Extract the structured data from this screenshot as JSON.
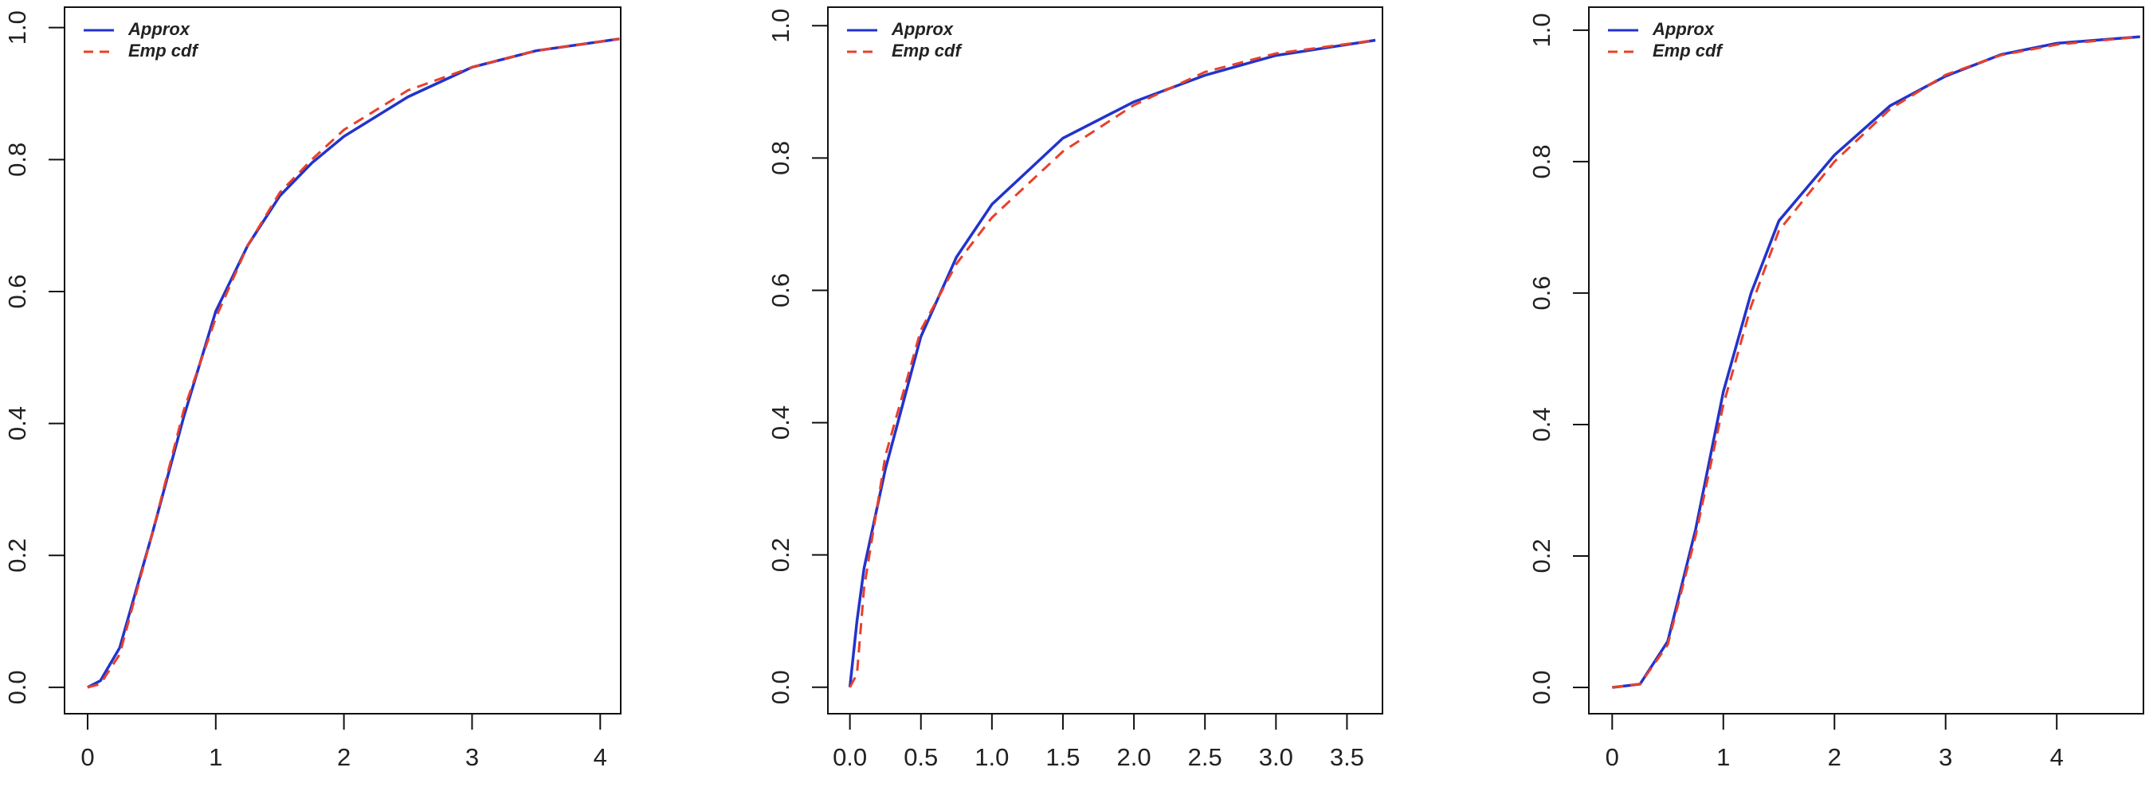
{
  "chart_data": [
    {
      "type": "line",
      "x": [
        0,
        0.1,
        0.25,
        0.5,
        0.75,
        1,
        1.25,
        1.5,
        1.75,
        2,
        2.5,
        3,
        3.5,
        4.15
      ],
      "series": [
        {
          "name": "Approx",
          "color": "#2233cc",
          "values": [
            0,
            0.01,
            0.06,
            0.23,
            0.41,
            0.57,
            0.67,
            0.745,
            0.795,
            0.835,
            0.895,
            0.94,
            0.965,
            0.983
          ]
        },
        {
          "name": "Emp cdf",
          "color": "#e8402a",
          "values": [
            0,
            0.005,
            0.05,
            0.23,
            0.42,
            0.56,
            0.67,
            0.75,
            0.8,
            0.845,
            0.905,
            0.94,
            0.965,
            0.983
          ]
        }
      ],
      "xlim": [
        -0.18,
        4.16
      ],
      "ylim": [
        -0.04,
        1.031
      ],
      "xticks": [
        0,
        1,
        2,
        3,
        4
      ],
      "yticks": [
        {
          "value": 0,
          "label": "0.0"
        },
        {
          "value": 0.2,
          "label": "0.2"
        },
        {
          "value": 0.4,
          "label": "0.4"
        },
        {
          "value": 0.6,
          "label": "0.6"
        },
        {
          "value": 0.8,
          "label": "0.8"
        },
        {
          "value": 1,
          "label": "1.0"
        }
      ],
      "legend": "top-left"
    },
    {
      "type": "line",
      "x": [
        0,
        0.05,
        0.1,
        0.25,
        0.5,
        0.75,
        1,
        1.5,
        2,
        2.5,
        3,
        3.7
      ],
      "series": [
        {
          "name": "Approx",
          "color": "#2233cc",
          "values": [
            0,
            0.1,
            0.18,
            0.33,
            0.53,
            0.65,
            0.73,
            0.83,
            0.885,
            0.925,
            0.955,
            0.978
          ]
        },
        {
          "name": "Emp cdf",
          "color": "#e8402a",
          "values": [
            0,
            0.02,
            0.15,
            0.35,
            0.54,
            0.64,
            0.71,
            0.81,
            0.88,
            0.93,
            0.958,
            0.978
          ]
        }
      ],
      "xlim": [
        -0.155,
        3.75
      ],
      "ylim": [
        -0.04,
        1.028
      ],
      "xticks": [
        {
          "value": 0,
          "label": "0.0"
        },
        0.5,
        {
          "value": 1,
          "label": "1.0"
        },
        1.5,
        {
          "value": 2,
          "label": "2.0"
        },
        2.5,
        {
          "value": 3,
          "label": "3.0"
        },
        3.5
      ],
      "yticks": [
        {
          "value": 0,
          "label": "0.0"
        },
        {
          "value": 0.2,
          "label": "0.2"
        },
        {
          "value": 0.4,
          "label": "0.4"
        },
        {
          "value": 0.6,
          "label": "0.6"
        },
        {
          "value": 0.8,
          "label": "0.8"
        },
        {
          "value": 1,
          "label": "1.0"
        }
      ],
      "legend": "top-left"
    },
    {
      "type": "line",
      "x": [
        0,
        0.25,
        0.5,
        0.75,
        1,
        1.25,
        1.5,
        2,
        2.5,
        3,
        3.5,
        4,
        4.75
      ],
      "series": [
        {
          "name": "Approx",
          "color": "#2233cc",
          "values": [
            0,
            0.005,
            0.07,
            0.24,
            0.45,
            0.6,
            0.71,
            0.81,
            0.885,
            0.93,
            0.963,
            0.98,
            0.99
          ]
        },
        {
          "name": "Emp cdf",
          "color": "#e8402a",
          "values": [
            0,
            0.005,
            0.065,
            0.23,
            0.43,
            0.58,
            0.695,
            0.8,
            0.88,
            0.932,
            0.962,
            0.978,
            0.99
          ]
        }
      ],
      "xlim": [
        -0.21,
        4.78
      ],
      "ylim": [
        -0.04,
        1.035
      ],
      "xticks": [
        0,
        1,
        2,
        3,
        4
      ],
      "yticks": [
        {
          "value": 0,
          "label": "0.0"
        },
        {
          "value": 0.2,
          "label": "0.2"
        },
        {
          "value": 0.4,
          "label": "0.4"
        },
        {
          "value": 0.6,
          "label": "0.6"
        },
        {
          "value": 0.8,
          "label": "0.8"
        },
        {
          "value": 1,
          "label": "1.0"
        }
      ],
      "legend": "top-left"
    }
  ]
}
